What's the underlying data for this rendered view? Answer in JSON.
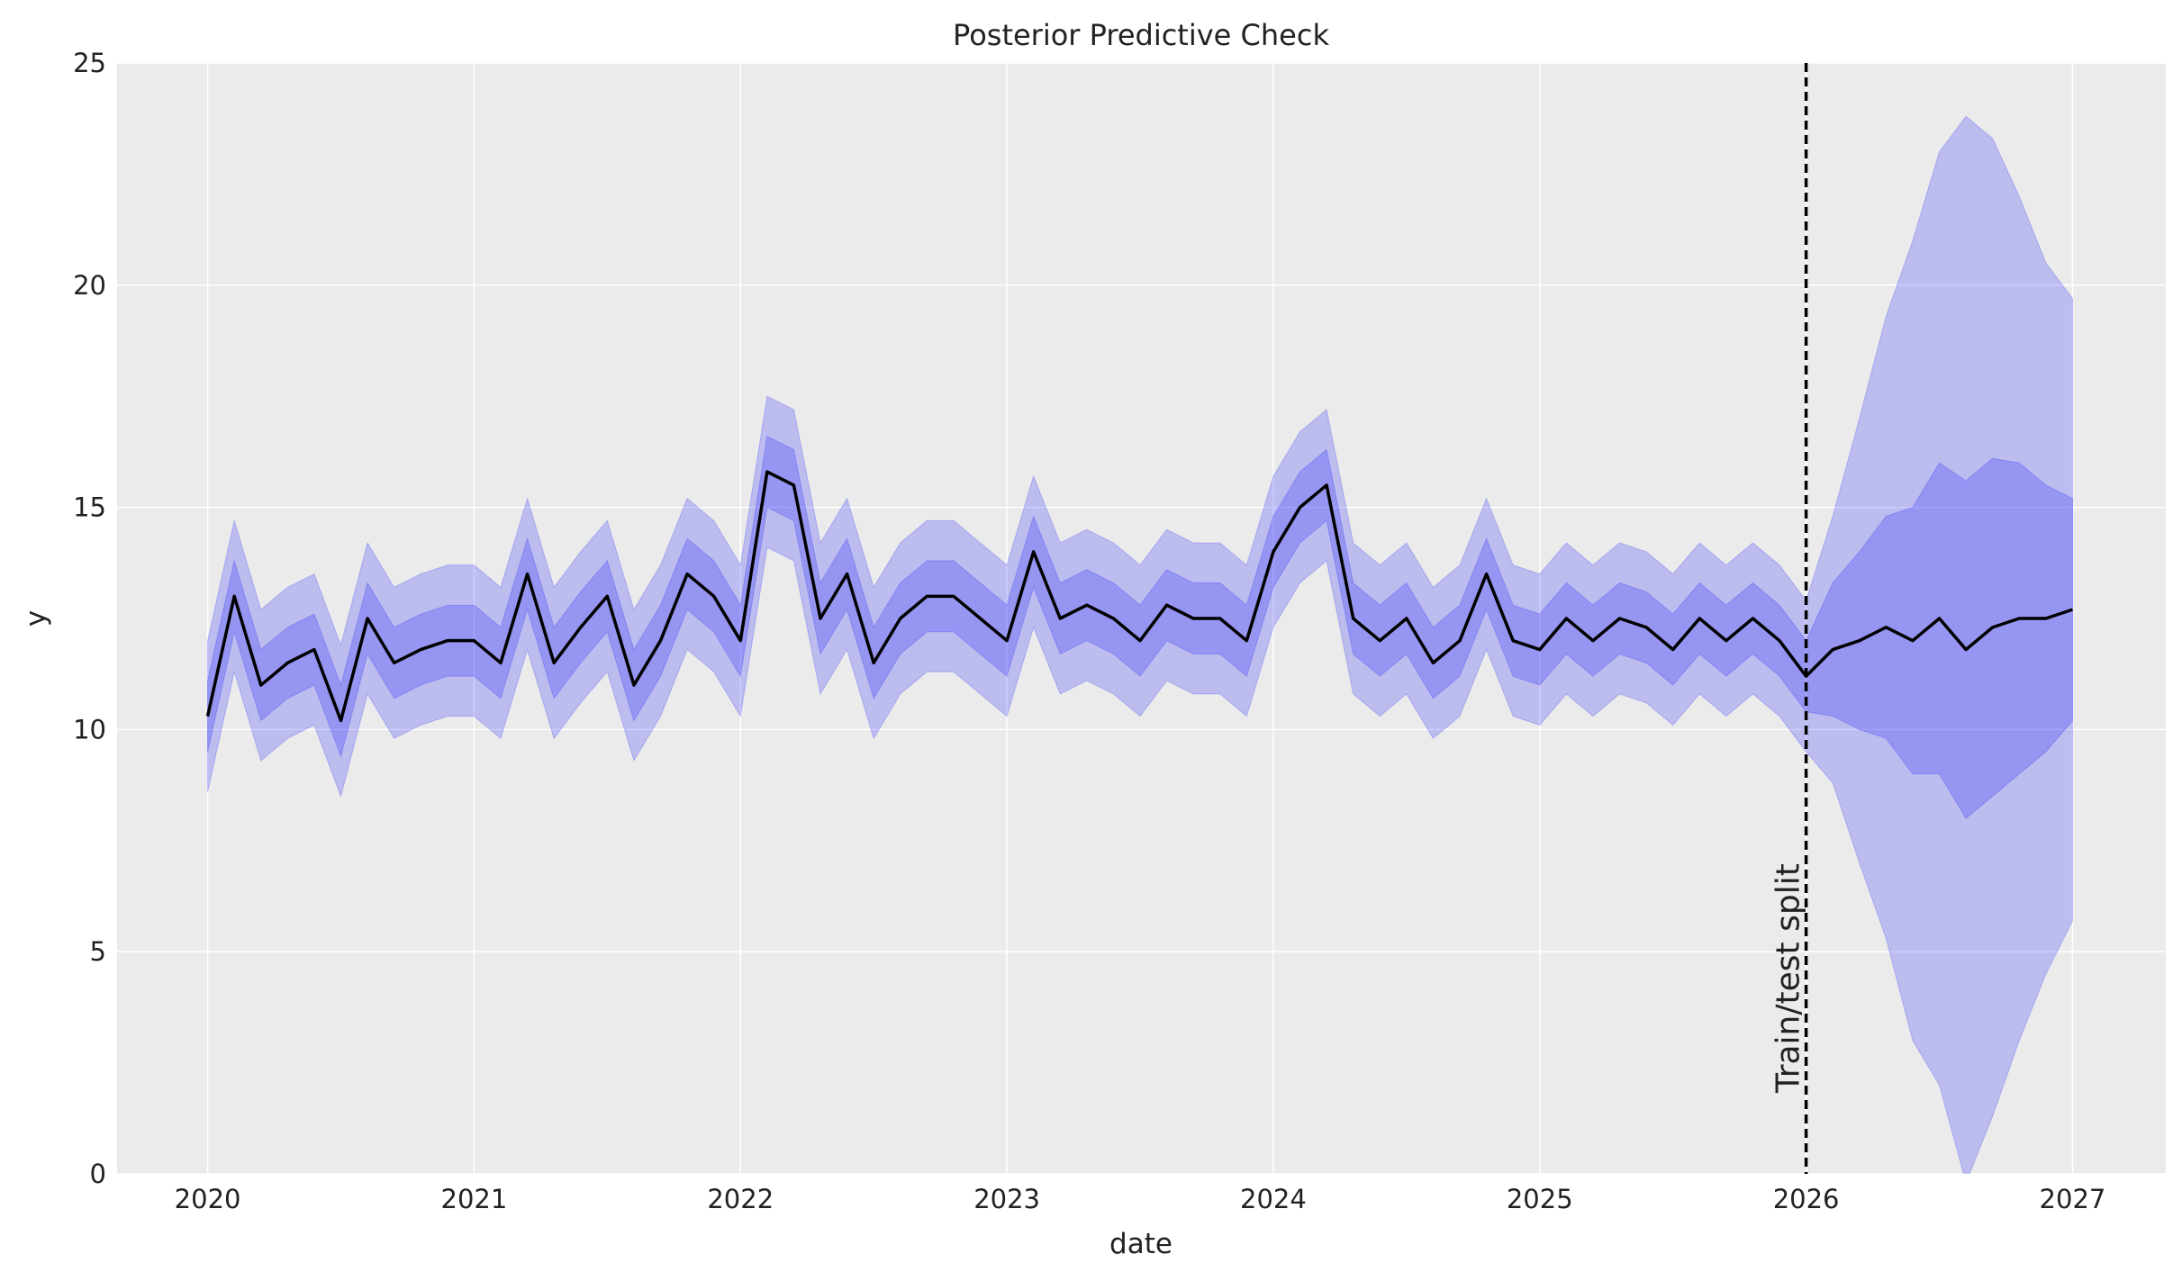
{
  "chart_data": {
    "type": "line",
    "title": "Posterior Predictive Check",
    "x_label": "date",
    "y_label": "y",
    "xlim": [
      2019.66,
      2027.35
    ],
    "ylim": [
      0,
      25
    ],
    "xticks": [
      2020,
      2021,
      2022,
      2023,
      2024,
      2025,
      2026,
      2027
    ],
    "yticks": [
      0,
      5,
      10,
      15,
      20,
      25
    ],
    "grid": true,
    "background": "#ebebeb",
    "x": [
      2020.0,
      2020.1,
      2020.2,
      2020.3,
      2020.4,
      2020.5,
      2020.6,
      2020.7,
      2020.8,
      2020.9,
      2021.0,
      2021.1,
      2021.2,
      2021.3,
      2021.4,
      2021.5,
      2021.6,
      2021.7,
      2021.8,
      2021.9,
      2022.0,
      2022.1,
      2022.2,
      2022.3,
      2022.4,
      2022.5,
      2022.6,
      2022.7,
      2022.8,
      2022.9,
      2023.0,
      2023.1,
      2023.2,
      2023.3,
      2023.4,
      2023.5,
      2023.6,
      2023.7,
      2023.8,
      2023.9,
      2024.0,
      2024.1,
      2024.2,
      2024.3,
      2024.4,
      2024.5,
      2024.6,
      2024.7,
      2024.8,
      2024.9,
      2025.0,
      2025.1,
      2025.2,
      2025.3,
      2025.4,
      2025.5,
      2025.6,
      2025.7,
      2025.8,
      2025.9,
      2026.0,
      2026.1,
      2026.2,
      2026.3,
      2026.4,
      2026.5,
      2026.6,
      2026.7,
      2026.8,
      2026.9,
      2027.0
    ],
    "bands": [
      {
        "color": "#0000ff",
        "opacity": 0.2,
        "lower": [
          8.6,
          11.3,
          9.3,
          9.8,
          10.1,
          8.5,
          10.8,
          9.8,
          10.1,
          10.3,
          10.3,
          9.8,
          11.8,
          9.8,
          10.6,
          11.3,
          9.3,
          10.3,
          11.8,
          11.3,
          10.3,
          14.1,
          13.8,
          10.8,
          11.8,
          9.8,
          10.8,
          11.3,
          11.3,
          10.8,
          10.3,
          12.3,
          10.8,
          11.1,
          10.8,
          10.3,
          11.1,
          10.8,
          10.8,
          10.3,
          12.3,
          13.3,
          13.8,
          10.8,
          10.3,
          10.8,
          9.8,
          10.3,
          11.8,
          10.3,
          10.1,
          10.8,
          10.3,
          10.8,
          10.6,
          10.1,
          10.8,
          10.3,
          10.8,
          10.3,
          9.5,
          8.8,
          7.0,
          5.3,
          3.0,
          2.0,
          -0.2,
          1.3,
          3.0,
          4.5,
          5.7
        ],
        "upper": [
          12.0,
          14.7,
          12.7,
          13.2,
          13.5,
          11.9,
          14.2,
          13.2,
          13.5,
          13.7,
          13.7,
          13.2,
          15.2,
          13.2,
          14.0,
          14.7,
          12.7,
          13.7,
          15.2,
          14.7,
          13.7,
          17.5,
          17.2,
          14.2,
          15.2,
          13.2,
          14.2,
          14.7,
          14.7,
          14.2,
          13.7,
          15.7,
          14.2,
          14.5,
          14.2,
          13.7,
          14.5,
          14.2,
          14.2,
          13.7,
          15.7,
          16.7,
          17.2,
          14.2,
          13.7,
          14.2,
          13.2,
          13.7,
          15.2,
          13.7,
          13.5,
          14.2,
          13.7,
          14.2,
          14.0,
          13.5,
          14.2,
          13.7,
          14.2,
          13.7,
          12.9,
          14.8,
          17.0,
          19.3,
          21.0,
          23.0,
          23.8,
          23.3,
          22.0,
          20.5,
          19.7
        ]
      },
      {
        "color": "#0000ff",
        "opacity": 0.2,
        "lower": [
          9.5,
          12.2,
          10.2,
          10.7,
          11.0,
          9.4,
          11.7,
          10.7,
          11.0,
          11.2,
          11.2,
          10.7,
          12.7,
          10.7,
          11.5,
          12.2,
          10.2,
          11.2,
          12.7,
          12.2,
          11.2,
          15.0,
          14.7,
          11.7,
          12.7,
          10.7,
          11.7,
          12.2,
          12.2,
          11.7,
          11.2,
          13.2,
          11.7,
          12.0,
          11.7,
          11.2,
          12.0,
          11.7,
          11.7,
          11.2,
          13.2,
          14.2,
          14.7,
          11.7,
          11.2,
          11.7,
          10.7,
          11.2,
          12.7,
          11.2,
          11.0,
          11.7,
          11.2,
          11.7,
          11.5,
          11.0,
          11.7,
          11.2,
          11.7,
          11.2,
          10.4,
          10.3,
          10.0,
          9.8,
          9.0,
          9.0,
          8.0,
          8.5,
          9.0,
          9.5,
          10.2
        ],
        "upper": [
          11.1,
          13.8,
          11.8,
          12.3,
          12.6,
          11.0,
          13.3,
          12.3,
          12.6,
          12.8,
          12.8,
          12.3,
          14.3,
          12.3,
          13.1,
          13.8,
          11.8,
          12.8,
          14.3,
          13.8,
          12.8,
          16.6,
          16.3,
          13.3,
          14.3,
          12.3,
          13.3,
          13.8,
          13.8,
          13.3,
          12.8,
          14.8,
          13.3,
          13.6,
          13.3,
          12.8,
          13.6,
          13.3,
          13.3,
          12.8,
          14.8,
          15.8,
          16.3,
          13.3,
          12.8,
          13.3,
          12.3,
          12.8,
          14.3,
          12.8,
          12.6,
          13.3,
          12.8,
          13.3,
          13.1,
          12.6,
          13.3,
          12.8,
          13.3,
          12.8,
          12.0,
          13.3,
          14.0,
          14.8,
          15.0,
          16.0,
          15.6,
          16.1,
          16.0,
          15.5,
          15.2
        ]
      }
    ],
    "series": [
      {
        "color": "#000000",
        "values": [
          10.3,
          13.0,
          11.0,
          11.5,
          11.8,
          10.2,
          12.5,
          11.5,
          11.8,
          12.0,
          12.0,
          11.5,
          13.5,
          11.5,
          12.3,
          13.0,
          11.0,
          12.0,
          13.5,
          13.0,
          12.0,
          15.8,
          15.5,
          12.5,
          13.5,
          11.5,
          12.5,
          13.0,
          13.0,
          12.5,
          12.0,
          14.0,
          12.5,
          12.8,
          12.5,
          12.0,
          12.8,
          12.5,
          12.5,
          12.0,
          14.0,
          15.0,
          15.5,
          12.5,
          12.0,
          12.5,
          11.5,
          12.0,
          13.5,
          12.0,
          11.8,
          12.5,
          12.0,
          12.5,
          12.3,
          11.8,
          12.5,
          12.0,
          12.5,
          12.0,
          11.2,
          11.8,
          12.0,
          12.3,
          12.0,
          12.5,
          11.8,
          12.3,
          12.5,
          12.5,
          12.7
        ]
      }
    ],
    "vline": {
      "x": 2026.0,
      "label": "Train/test split"
    }
  }
}
